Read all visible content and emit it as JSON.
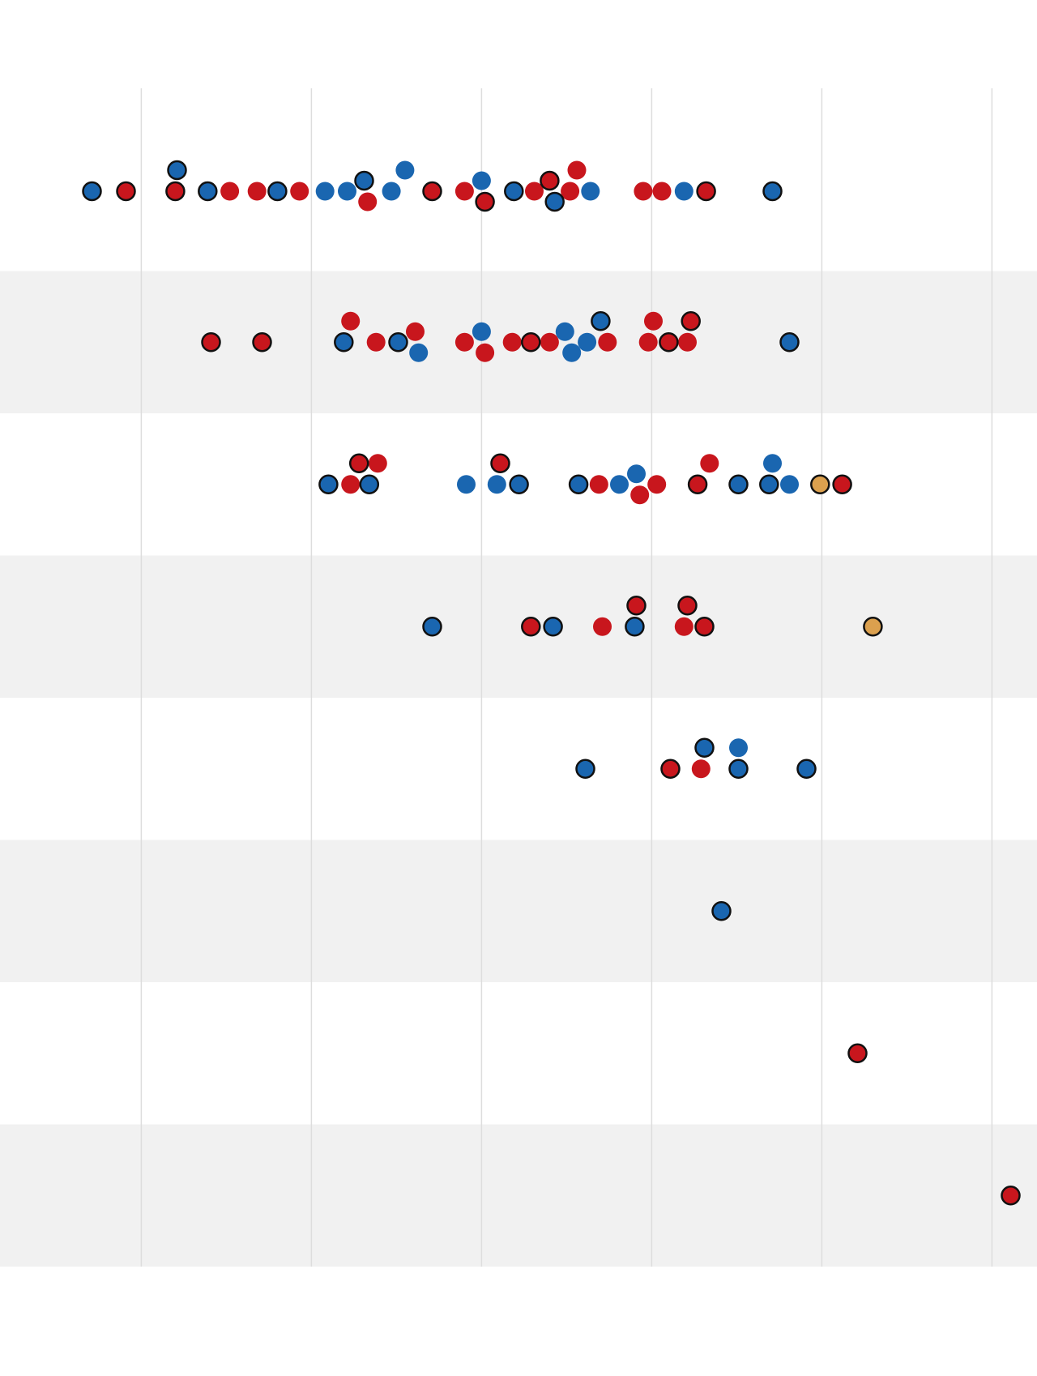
{
  "chart_data": {
    "type": "scatter",
    "subtype": "beeswarm-strip",
    "title": "",
    "xlabel": "",
    "ylabel": "",
    "x_gridlines": [
      0,
      1,
      2,
      3,
      4,
      5
    ],
    "xlim": [
      -0.6,
      5.5
    ],
    "grid": true,
    "legend": "none",
    "colors": {
      "blue": "#1a66b0",
      "red": "#c8161d",
      "orange": "#dba04e",
      "outline": "#111111",
      "band": "#f1f1f1",
      "gridline": "#dddddd"
    },
    "rows": [
      {
        "points": [
          [
            -0.29,
            "blue",
            true
          ],
          [
            -0.09,
            "red",
            true
          ],
          [
            0.2,
            "red",
            true
          ],
          [
            0.21,
            "blue",
            true
          ],
          [
            0.39,
            "blue",
            true
          ],
          [
            0.52,
            "red",
            false
          ],
          [
            0.68,
            "red",
            false
          ],
          [
            0.8,
            "blue",
            true
          ],
          [
            0.93,
            "red",
            false
          ],
          [
            1.08,
            "blue",
            false
          ],
          [
            1.21,
            "blue",
            false
          ],
          [
            1.33,
            "red",
            false
          ],
          [
            1.31,
            "blue",
            true
          ],
          [
            1.47,
            "blue",
            false
          ],
          [
            1.55,
            "blue",
            false
          ],
          [
            1.71,
            "red",
            true
          ],
          [
            1.9,
            "red",
            false
          ],
          [
            2.02,
            "red",
            true
          ],
          [
            2.0,
            "blue",
            false
          ],
          [
            2.19,
            "blue",
            true
          ],
          [
            2.31,
            "red",
            false
          ],
          [
            2.43,
            "blue",
            true
          ],
          [
            2.4,
            "red",
            true
          ],
          [
            2.56,
            "red",
            false
          ],
          [
            2.52,
            "red",
            false
          ],
          [
            2.64,
            "blue",
            false
          ],
          [
            2.95,
            "red",
            false
          ],
          [
            3.06,
            "red",
            false
          ],
          [
            3.19,
            "blue",
            false
          ],
          [
            3.32,
            "red",
            true
          ],
          [
            3.71,
            "blue",
            true
          ]
        ]
      },
      {
        "points": [
          [
            0.41,
            "red",
            true
          ],
          [
            0.71,
            "red",
            true
          ],
          [
            1.23,
            "red",
            false
          ],
          [
            1.19,
            "blue",
            true
          ],
          [
            1.38,
            "red",
            false
          ],
          [
            1.51,
            "blue",
            true
          ],
          [
            1.63,
            "blue",
            false
          ],
          [
            1.61,
            "red",
            false
          ],
          [
            1.9,
            "red",
            false
          ],
          [
            2.0,
            "blue",
            false
          ],
          [
            2.02,
            "red",
            false
          ],
          [
            2.18,
            "red",
            false
          ],
          [
            2.29,
            "red",
            true
          ],
          [
            2.4,
            "red",
            false
          ],
          [
            2.53,
            "blue",
            false
          ],
          [
            2.49,
            "blue",
            false
          ],
          [
            2.62,
            "blue",
            false
          ],
          [
            2.7,
            "blue",
            true
          ],
          [
            2.74,
            "red",
            false
          ],
          [
            2.98,
            "red",
            false
          ],
          [
            3.01,
            "red",
            false
          ],
          [
            3.1,
            "red",
            true
          ],
          [
            3.23,
            "red",
            true
          ],
          [
            3.21,
            "red",
            false
          ],
          [
            3.81,
            "blue",
            true
          ]
        ]
      },
      {
        "points": [
          [
            1.1,
            "blue",
            true
          ],
          [
            1.28,
            "red",
            true
          ],
          [
            1.23,
            "red",
            false
          ],
          [
            1.39,
            "red",
            false
          ],
          [
            1.34,
            "blue",
            true
          ],
          [
            1.91,
            "blue",
            false
          ],
          [
            2.09,
            "blue",
            false
          ],
          [
            2.11,
            "red",
            true
          ],
          [
            2.22,
            "blue",
            true
          ],
          [
            2.57,
            "blue",
            true
          ],
          [
            2.69,
            "red",
            false
          ],
          [
            2.81,
            "blue",
            false
          ],
          [
            2.93,
            "red",
            false
          ],
          [
            2.91,
            "blue",
            false
          ],
          [
            3.03,
            "red",
            false
          ],
          [
            3.27,
            "red",
            true
          ],
          [
            3.34,
            "red",
            false
          ],
          [
            3.51,
            "blue",
            true
          ],
          [
            3.71,
            "blue",
            false
          ],
          [
            3.69,
            "blue",
            true
          ],
          [
            3.81,
            "blue",
            false
          ],
          [
            3.99,
            "orange",
            true
          ],
          [
            4.12,
            "red",
            true
          ]
        ]
      },
      {
        "points": [
          [
            1.71,
            "blue",
            true
          ],
          [
            2.29,
            "red",
            true
          ],
          [
            2.42,
            "blue",
            true
          ],
          [
            2.71,
            "red",
            false
          ],
          [
            2.91,
            "red",
            true
          ],
          [
            2.9,
            "blue",
            true
          ],
          [
            3.19,
            "red",
            false
          ],
          [
            3.21,
            "red",
            true
          ],
          [
            3.31,
            "red",
            true
          ],
          [
            4.3,
            "orange",
            true
          ]
        ]
      },
      {
        "points": [
          [
            2.61,
            "blue",
            true
          ],
          [
            3.11,
            "red",
            true
          ],
          [
            3.29,
            "red",
            false
          ],
          [
            3.31,
            "blue",
            true
          ],
          [
            3.51,
            "blue",
            true
          ],
          [
            3.51,
            "blue",
            false
          ],
          [
            3.91,
            "blue",
            true
          ]
        ]
      },
      {
        "points": [
          [
            3.41,
            "blue",
            true
          ]
        ]
      },
      {
        "points": [
          [
            4.21,
            "red",
            true
          ]
        ]
      },
      {
        "points": [
          [
            5.11,
            "red",
            true
          ]
        ]
      }
    ]
  }
}
